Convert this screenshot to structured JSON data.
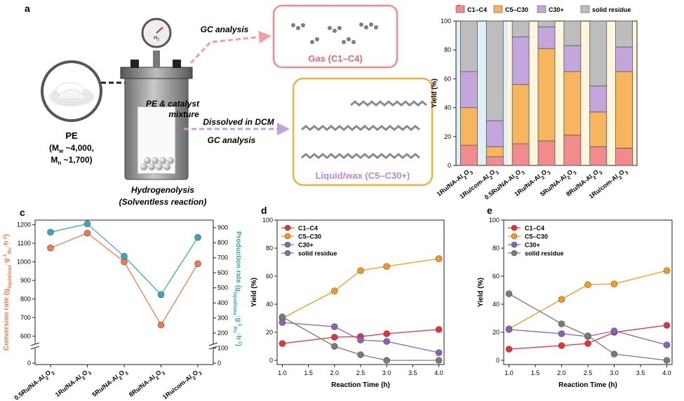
{
  "panel_a": {
    "letter": "a",
    "pe_label": "PE",
    "mw_label": "(M",
    "mw_sub": "w",
    "mw_value": " ~4,000,",
    "mn_label": "M",
    "mn_sub": "n",
    "mn_value": " ~1,700)",
    "gauge_label": "H",
    "gauge_sub": "2",
    "mixture_line1": "PE & catalyst",
    "mixture_line2": "mixture",
    "reaction_line1": "Hydrogenolysis",
    "reaction_line2": "(Solventless reaction)",
    "gc_analysis_top": "GC analysis",
    "dissolved": "Dissolved in DCM",
    "gc_analysis_bottom": "GC analysis",
    "gas_box": "Gas (C1–C4)",
    "liquid_box": "Liquid/wax (C5–C30+)",
    "colors": {
      "gas": "#f08080",
      "liquid": "#f5b041",
      "wax": "#b08cc8",
      "gc_top": "#f0a0a0",
      "gc_bottom": "#c8a0d8"
    }
  },
  "chart_data": [
    {
      "panel": "b",
      "type": "bar",
      "stacked": true,
      "categories": [
        "1Ru/NA-Al2O3*",
        "1Ru/com-Al2O3*",
        "0.5Ru/NA-Al2O3",
        "1Ru/NA-Al2O3",
        "5Ru/NA-Al2O3",
        "8Ru/NA-Al2O3",
        "1Ru/com-Al2O3"
      ],
      "series": [
        {
          "name": "C1–C4",
          "color": "#f28b8b",
          "values": [
            14,
            6,
            15,
            17,
            21,
            13,
            12
          ]
        },
        {
          "name": "C5–C30",
          "color": "#f7b560",
          "values": [
            26,
            7,
            41,
            64,
            44,
            24,
            53
          ]
        },
        {
          "name": "C30+",
          "color": "#c4a6dc",
          "values": [
            25,
            18,
            33,
            15,
            18,
            18,
            17
          ]
        },
        {
          "name": "solid residue",
          "color": "#bdbdbd",
          "values": [
            35,
            69,
            11,
            4,
            17,
            45,
            18
          ]
        }
      ],
      "ylabel": "Yield (%)",
      "ylim": [
        0,
        100
      ],
      "yticks": [
        0,
        20,
        40,
        60,
        80,
        100
      ],
      "legend": "top",
      "bg_colors": [
        "#dff0f7",
        "#fdf6dc"
      ]
    },
    {
      "panel": "c",
      "type": "line",
      "categories": [
        "0.5Ru/NA-Al2O3",
        "1Ru/NA-Al2O3",
        "5Ru/NA-Al2O3",
        "8Ru/NA-Al2O3",
        "1Ru/com-Al2O3"
      ],
      "series": [
        {
          "name": "Conversion rate",
          "axis": "left",
          "color": "#f07b4a",
          "values": [
            1075,
            1155,
            1000,
            660,
            990
          ]
        },
        {
          "name": "Production rate",
          "axis": "right",
          "color": "#3aa8b8",
          "values": [
            870,
            925,
            710,
            455,
            835
          ]
        }
      ],
      "ylabel_left": "Conversion rate (g",
      "ylabel_left_sub": "liquid/wax",
      "ylabel_left_tail": "·g",
      "ylabel_left_sup": "-1",
      "ylabel_left_sub2": "Ru",
      "ylabel_left_end": "·h",
      "ylabel_left_sup2": "-1",
      "ylabel_left_close": ")",
      "ylabel_right": "Production rate (g",
      "ylabel_right_sub": "liquid/wax",
      "ylabel_right_tail": "·g",
      "ylabel_right_sup": "-1",
      "ylabel_right_sub2": "Ru",
      "ylabel_right_end": "·h",
      "ylabel_right_sup2": "-1",
      "ylabel_right_close": ")",
      "left_ticks_upper": [
        600,
        700,
        800,
        900,
        1000,
        1100,
        1200
      ],
      "left_ticks_lower": [
        0
      ],
      "right_ticks": [
        0,
        100,
        200,
        300,
        400,
        500,
        600,
        700,
        800,
        900
      ],
      "left_range_upper": [
        575,
        1225
      ],
      "right_range": [
        0,
        950
      ]
    },
    {
      "panel": "d",
      "type": "line",
      "x": [
        1.0,
        2.0,
        2.5,
        3.0,
        4.0
      ],
      "series": [
        {
          "name": "C1–C4",
          "color": "#e8303a",
          "values": [
            12,
            16.5,
            17,
            19,
            22
          ]
        },
        {
          "name": "C5–C30",
          "color": "#f39b1f",
          "values": [
            30,
            49.5,
            64,
            67,
            72.5
          ]
        },
        {
          "name": "C30+",
          "color": "#8a5fbf",
          "values": [
            27,
            24,
            14.5,
            13.5,
            5.5
          ]
        },
        {
          "name": "solid residue",
          "color": "#7a7a7a",
          "values": [
            31,
            10,
            4,
            0,
            0
          ]
        }
      ],
      "xlabel": "Reaction Time (h)",
      "ylabel": "Yield (%)",
      "xlim": [
        0.9,
        4.1
      ],
      "ylim": [
        -3,
        100
      ],
      "xticks": [
        1.0,
        1.5,
        2.0,
        2.5,
        3.0,
        3.5,
        4.0
      ],
      "yticks": [
        0,
        20,
        40,
        60,
        80,
        100
      ],
      "legend": "top-left"
    },
    {
      "panel": "e",
      "type": "line",
      "x": [
        1.0,
        2.0,
        2.5,
        3.0,
        4.0
      ],
      "series": [
        {
          "name": "C1–C4",
          "color": "#e8303a",
          "values": [
            8,
            10.5,
            12,
            20,
            25
          ]
        },
        {
          "name": "C5–C30",
          "color": "#f39b1f",
          "values": [
            22.5,
            43.5,
            54,
            54.5,
            64
          ]
        },
        {
          "name": "C30+",
          "color": "#8a5fbf",
          "values": [
            22,
            19,
            17,
            21,
            11
          ]
        },
        {
          "name": "solid residue",
          "color": "#7a7a7a",
          "values": [
            47.5,
            26,
            17.5,
            4.5,
            0
          ]
        }
      ],
      "xlabel": "Reaction Time (h)",
      "ylabel": "Yield (%)",
      "xlim": [
        0.9,
        4.1
      ],
      "ylim": [
        -3,
        100
      ],
      "xticks": [
        1.0,
        1.5,
        2.0,
        2.5,
        3.0,
        3.5,
        4.0
      ],
      "yticks": [
        0,
        20,
        40,
        60,
        80,
        100
      ],
      "legend": "top-left"
    }
  ]
}
